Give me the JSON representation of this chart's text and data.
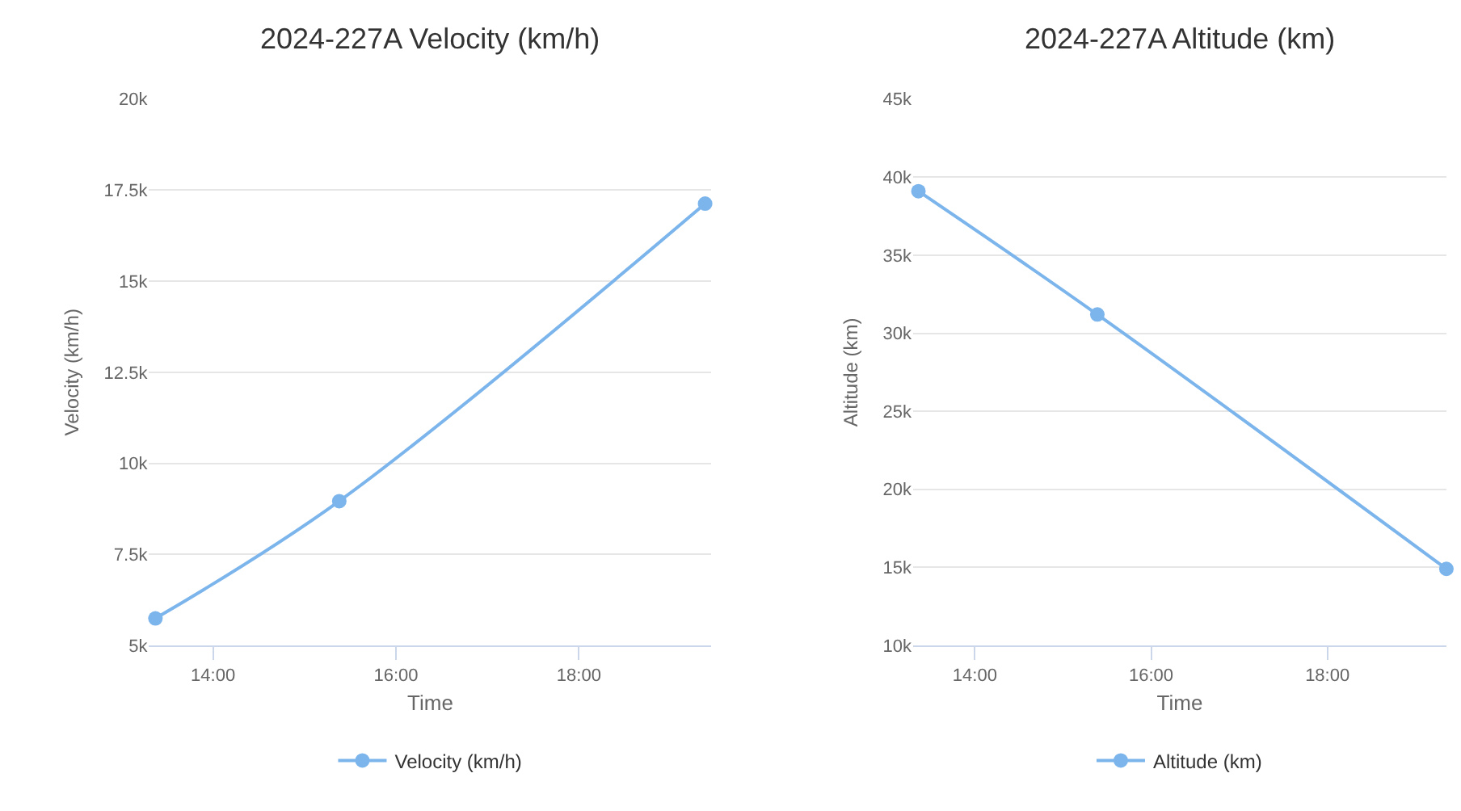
{
  "chart_data": [
    {
      "type": "line",
      "title": "2024-227A Velocity (km/h)",
      "xlabel": "Time",
      "ylabel": "Velocity (km/h)",
      "x": [
        13.37,
        15.38,
        19.38
      ],
      "series": [
        {
          "name": "Velocity (km/h)",
          "color": "#7cb5ec",
          "values": [
            5740,
            8960,
            17130
          ]
        }
      ],
      "xlim": [
        13.3,
        19.45
      ],
      "xticks": [
        {
          "value": 14,
          "label": "14:00"
        },
        {
          "value": 16,
          "label": "16:00"
        },
        {
          "value": 18,
          "label": "18:00"
        }
      ],
      "ylim": [
        5000,
        20000
      ],
      "yticks": [
        {
          "value": 5000,
          "label": "5k"
        },
        {
          "value": 7500,
          "label": "7.5k"
        },
        {
          "value": 10000,
          "label": "10k"
        },
        {
          "value": 12500,
          "label": "12.5k"
        },
        {
          "value": 15000,
          "label": "15k"
        },
        {
          "value": 17500,
          "label": "17.5k"
        },
        {
          "value": 20000,
          "label": "20k"
        }
      ],
      "grid": "y",
      "legend": "bottom",
      "marker": "circle"
    },
    {
      "type": "line",
      "title": "2024-227A Altitude (km)",
      "xlabel": "Time",
      "ylabel": "Altitude (km)",
      "x": [
        13.36,
        15.39,
        19.35
      ],
      "series": [
        {
          "name": "Altitude (km)",
          "color": "#7cb5ec",
          "values": [
            39100,
            31200,
            14900
          ]
        }
      ],
      "xlim": [
        13.3,
        19.35
      ],
      "xticks": [
        {
          "value": 14,
          "label": "14:00"
        },
        {
          "value": 16,
          "label": "16:00"
        },
        {
          "value": 18,
          "label": "18:00"
        }
      ],
      "ylim": [
        10000,
        45000
      ],
      "yticks": [
        {
          "value": 10000,
          "label": "10k"
        },
        {
          "value": 15000,
          "label": "15k"
        },
        {
          "value": 20000,
          "label": "20k"
        },
        {
          "value": 25000,
          "label": "25k"
        },
        {
          "value": 30000,
          "label": "30k"
        },
        {
          "value": 35000,
          "label": "35k"
        },
        {
          "value": 40000,
          "label": "40k"
        },
        {
          "value": 45000,
          "label": "45k"
        }
      ],
      "grid": "y",
      "legend": "bottom",
      "marker": "circle"
    }
  ]
}
